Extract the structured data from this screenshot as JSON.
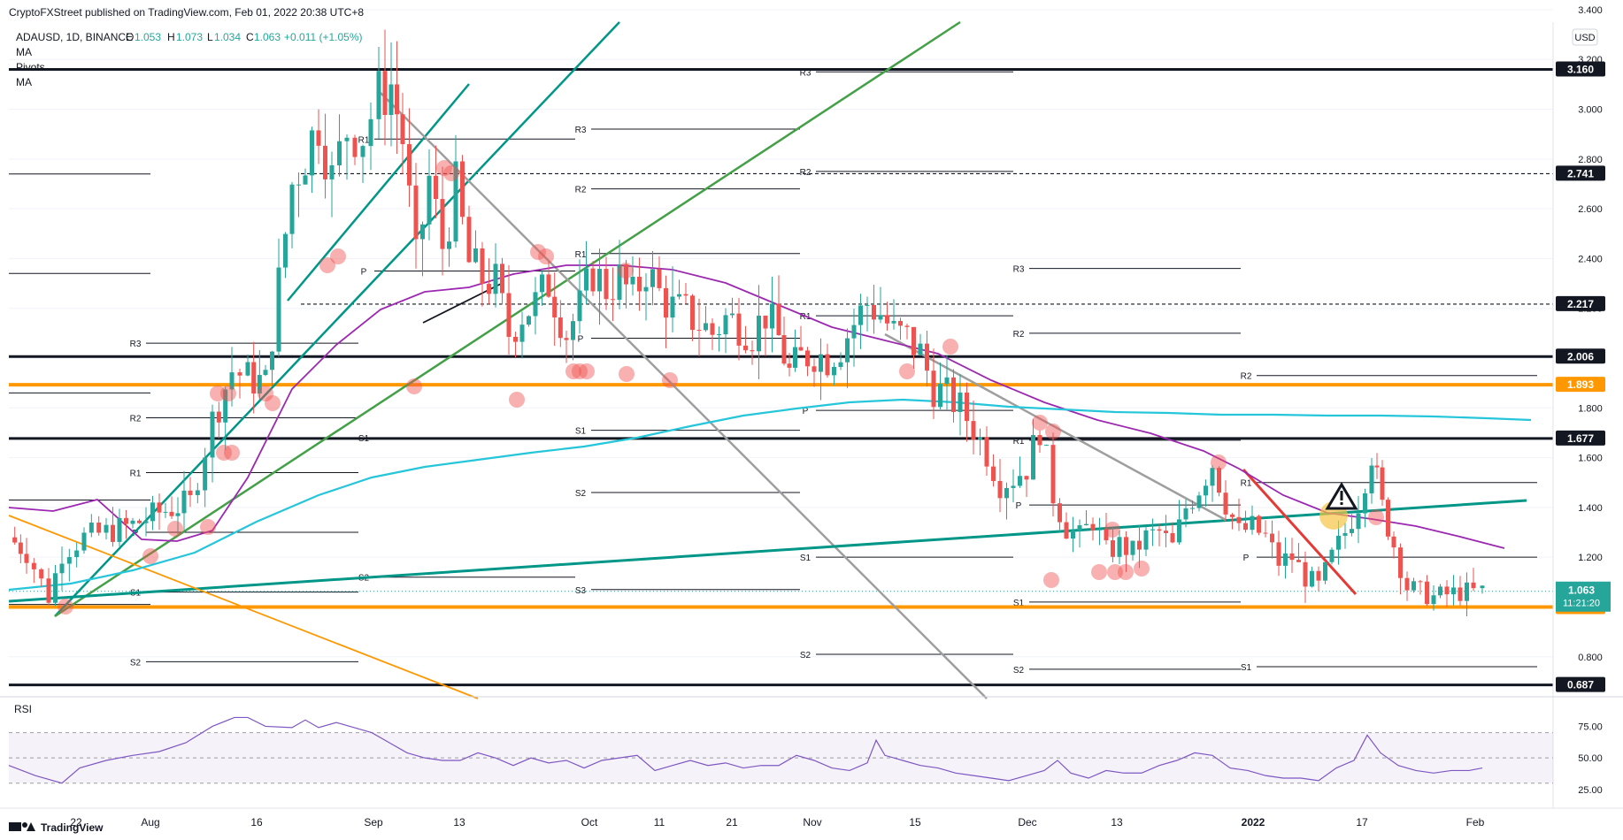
{
  "header": {
    "published": "CryptoFXStreet published on TradingView.com, Feb 01, 2022 20:38 UTC+8",
    "symbol": "ADAUSD, 1D, BINANCE",
    "ohlc": [
      {
        "k": "O",
        "v": "1.053"
      },
      {
        "k": "H",
        "v": "1.073"
      },
      {
        "k": "L",
        "v": "1.034"
      },
      {
        "k": "C",
        "v": "1.063"
      }
    ],
    "change": "+0.011 (+1.05%)",
    "indicators": [
      "MA",
      "Pivots",
      "MA"
    ]
  },
  "footer": {
    "brand": "TradingView"
  },
  "colors": {
    "up": "#26a69a",
    "down": "#ef5350",
    "ma_fast": "#9c27b0",
    "ma_slow": "#26c6da",
    "support_orange": "#ff9800",
    "trend_green": "#009688",
    "rsi": "#7e57c2"
  },
  "chart_data": [
    {
      "type": "candlestick",
      "symbol": "ADAUSD",
      "timeframe": "1D",
      "currency": "USD",
      "ylim": [
        0.65,
        3.35
      ],
      "y_ticks": [
        "3.400",
        "3.200",
        "3.000",
        "2.800",
        "2.600",
        "2.400",
        "2.200",
        "2.000",
        "1.800",
        "1.600",
        "1.400",
        "1.200",
        "1.000",
        "0.800"
      ],
      "x_labels": [
        "22",
        "Aug",
        "16",
        "Sep",
        "13",
        "Oct",
        "11",
        "21",
        "Nov",
        "15",
        "Dec",
        "13",
        "2022",
        "17",
        "Feb"
      ],
      "last_price": {
        "value": "1.063",
        "countdown": "11:21:20"
      },
      "levels": [
        {
          "value": "3.160",
          "style": "solid-black"
        },
        {
          "value": "2.741",
          "style": "dashed-black"
        },
        {
          "value": "2.217",
          "style": "dashed-black"
        },
        {
          "value": "2.006",
          "style": "solid-black"
        },
        {
          "value": "1.893",
          "style": "solid-orange"
        },
        {
          "value": "1.677",
          "style": "solid-black"
        },
        {
          "value": "1.000",
          "style": "solid-orange"
        },
        {
          "value": "0.687",
          "style": "solid-black"
        }
      ],
      "pivot_labels": [
        "R3",
        "R2",
        "R1",
        "P",
        "S1",
        "S2",
        "S3"
      ],
      "series": [
        {
          "name": "MA",
          "kind": "moving-average"
        },
        {
          "name": "MA",
          "kind": "moving-average"
        },
        {
          "name": "Pivots",
          "kind": "pivot-points"
        }
      ]
    },
    {
      "type": "line",
      "name": "RSI",
      "ylim": [
        20,
        90
      ],
      "y_ticks": [
        "75.00",
        "50.00",
        "25.00"
      ],
      "bands": [
        30,
        70
      ]
    }
  ]
}
